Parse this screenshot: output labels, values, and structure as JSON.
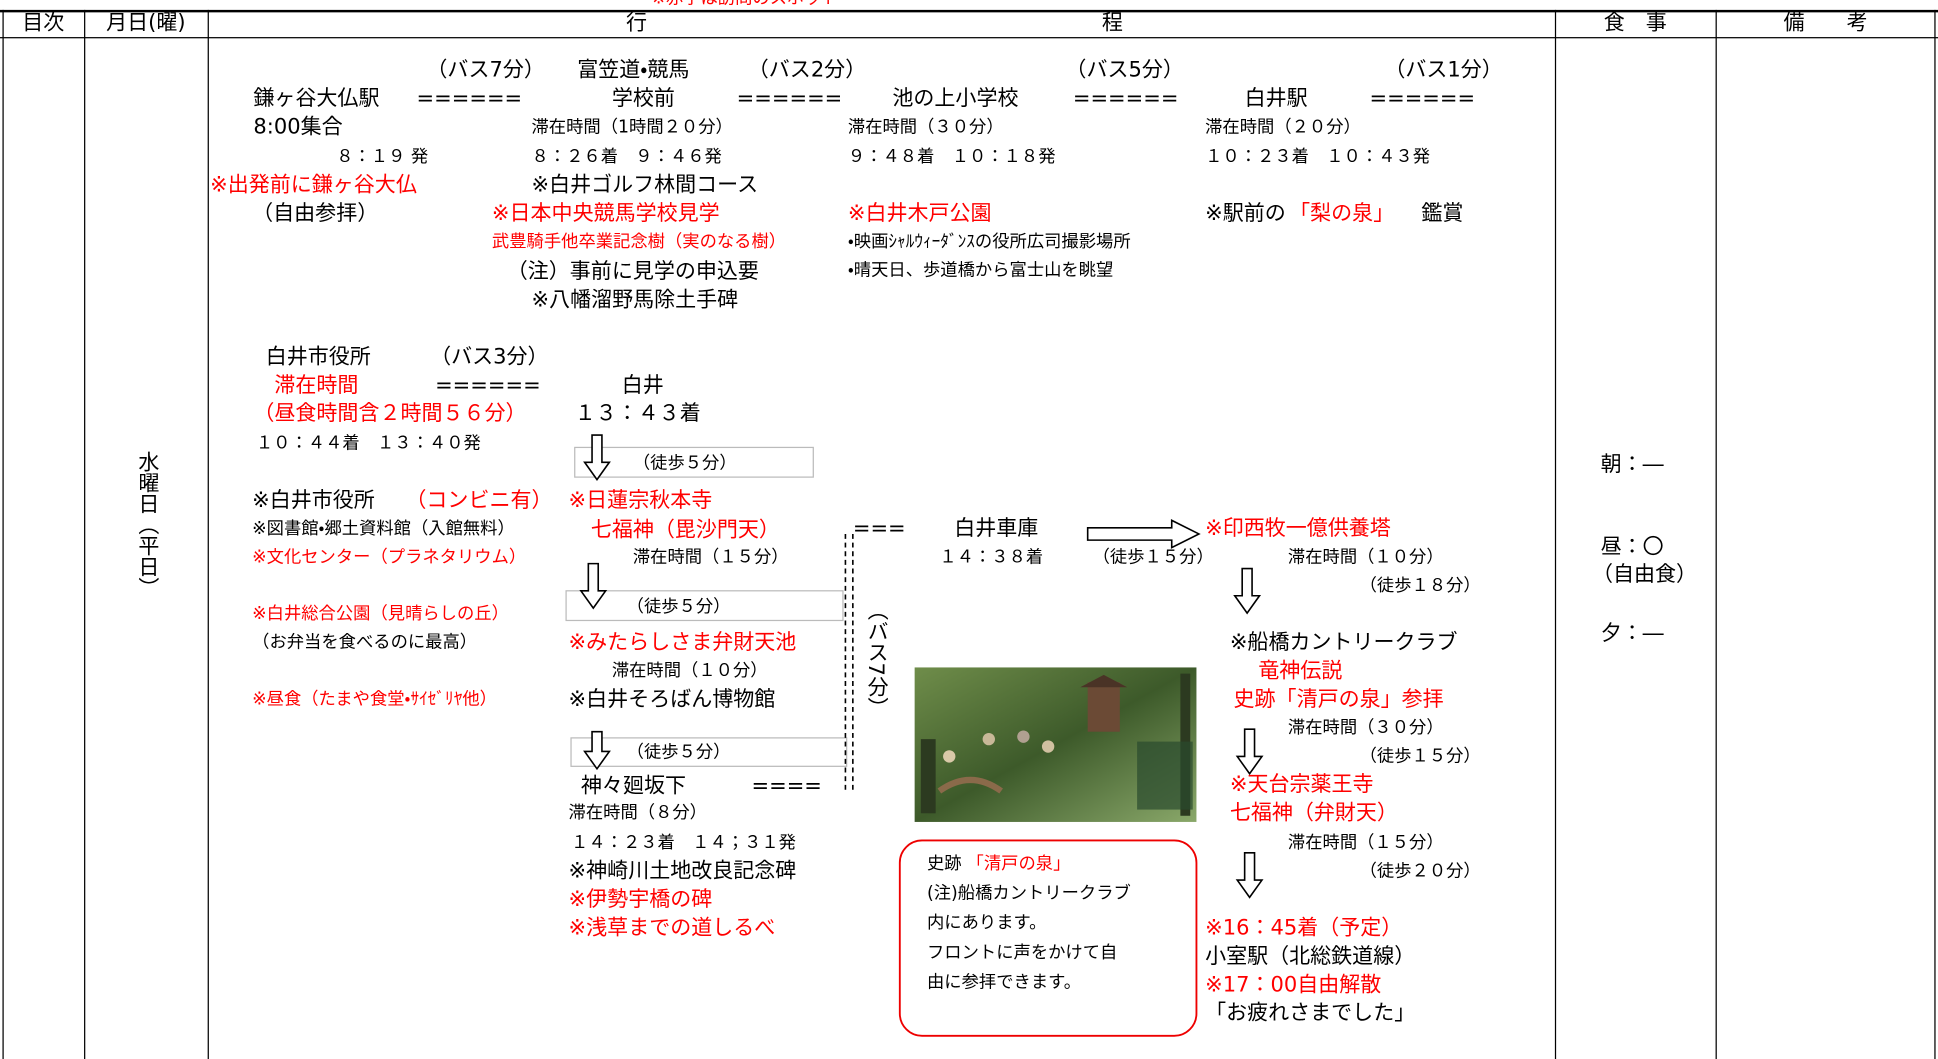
{
  "header": {
    "note": "※赤字は訪問のスポット",
    "columns": [
      "目次",
      "月日(曜)",
      "行",
      "程",
      "食　事",
      "備　　考"
    ]
  },
  "day": "水曜日（平日）",
  "itinerary": [
    "（バス7分）",
    "富笠道・競馬",
    "（バス2分）",
    "（バス5分）",
    "（バス1分）",
    "鎌ヶ谷大仏駅",
    "======",
    "学校前",
    "======",
    "池の上小学校",
    "======",
    "白井駅",
    "======",
    "8:00集合",
    "滞在時間（1時間２０分）",
    "滞在時間（３０分）",
    "滞在時間（２０分）",
    "８：１９ 発",
    "８：２６着　９：４６発",
    "９：４８着　１０：１８発",
    "１０：２３着　１０：４３発",
    "※出発前に鎌ヶ谷大仏",
    "※白井ゴルフ林間コース",
    "（自由参拝）",
    "※日本中央競馬学校見学",
    "※白井木戸公園",
    "※駅前の",
    "「梨の泉」",
    "鑑賞",
    "武豊騎手他卒業記念樹（実のなる樹）",
    "・映画ｼｬﾙｳｨｰﾀﾞﾝｽの役所広司撮影場所",
    "（注）事前に見学の申込要",
    "・晴天日、歩道橋から富士山を眺望",
    "※八幡溜野馬除土手碑",
    "白井市役所",
    "（バス3分）",
    "滞在時間",
    "======",
    "白井",
    "（昼食時間含２時間５６分）",
    "１３：４３着",
    "１０：４４着　１３：４０発",
    "（徒歩５分）",
    "※白井市役所",
    "（コンビニ有）",
    "※日蓮宗秋本寺",
    "※図書館・郷土資料館（入館無料）",
    "七福神（毘沙門天）",
    "※文化センター（プラネタリウム）",
    "滞在時間（１５分）",
    "（徒歩５分）",
    "※白井総合公園（見晴らしの丘）",
    "（お弁当を食べるのに最高）",
    "※みたらしさま弁財天池",
    "滞在時間（１０分）",
    "※昼食（たまや食堂・ｻｲｾﾞﾘﾔ他）",
    "※白井そろばん博物館",
    "（徒歩５分）",
    "神々廻坂下",
    "====",
    "滞在時間（８分）",
    "１４：２３着　１４；３１発",
    "※神崎川土地改良記念碑",
    "※伊勢宇橋の碑",
    "※浅草までの道しるべ",
    "===",
    "白井車庫",
    "１４：３８着",
    "（徒歩１５分）",
    "（バス7分）",
    "※印西牧一億供養塔",
    "滞在時間（１０分）",
    "（徒歩１８分）",
    "※船橋カントリークラブ",
    "竜神伝説",
    "史跡「清戸の泉」参拝",
    "滞在時間（３０分）",
    "（徒歩１５分）",
    "※天台宗薬王寺",
    "七福神（弁財天）",
    "滞在時間（１５分）",
    "（徒歩２０分）",
    "※16：45着（予定）",
    "小室駅（北総鉄道線）",
    "※17：00自由解散",
    "「お疲れさまでした」"
  ],
  "callout": [
    "史跡",
    "「清戸の泉」",
    "(注)船橋カントリークラブ",
    "内にあります。",
    "フロントに声をかけて自",
    "由に参拝できます。"
  ],
  "meals": [
    "朝：―",
    "昼：〇",
    "（自由食）",
    "夕：―"
  ]
}
